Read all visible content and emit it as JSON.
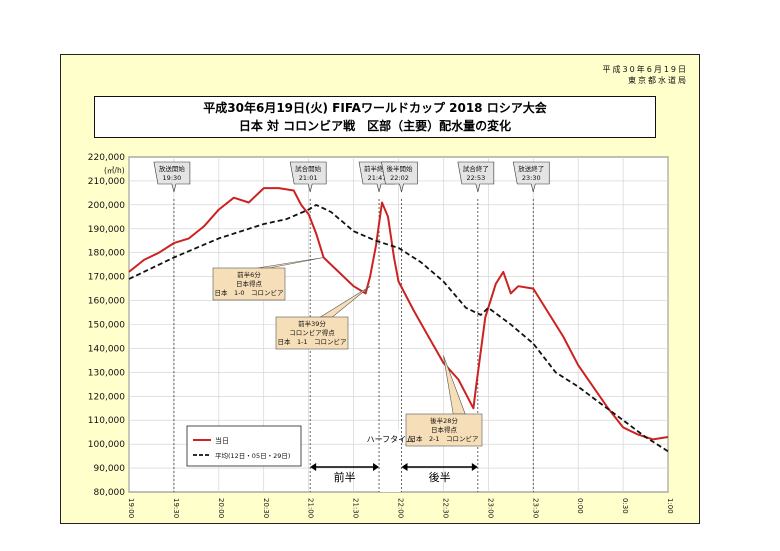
{
  "header": {
    "date": "平成30年6月19日",
    "agency": "東京都水道局"
  },
  "chart_data": {
    "type": "line",
    "title_line1": "平成30年6月19日(火) FIFAワールドカップ 2018 ロシア大会",
    "title_line2": "日本 対 コロンビア戦　区部（主要）配水量の変化",
    "ylabel": "(㎥/h)",
    "ylim": [
      80000,
      220000
    ],
    "yticks": [
      "80,000",
      "90,000",
      "100,000",
      "110,000",
      "120,000",
      "130,000",
      "140,000",
      "150,000",
      "160,000",
      "170,000",
      "180,000",
      "190,000",
      "200,000",
      "210,000",
      "220,000"
    ],
    "xlim": [
      "19:00",
      "25:00"
    ],
    "xticks": [
      "19:00",
      "19:30",
      "20:00",
      "20:30",
      "21:00",
      "21:30",
      "22:00",
      "22:30",
      "23:00",
      "23:30",
      "0:00",
      "0:30",
      "1:00"
    ],
    "series": [
      {
        "name": "当日",
        "color": "#cc2222",
        "style": "solid",
        "points": [
          [
            "19:00",
            172000
          ],
          [
            "19:10",
            177000
          ],
          [
            "19:20",
            180000
          ],
          [
            "19:30",
            184000
          ],
          [
            "19:40",
            186000
          ],
          [
            "19:50",
            191000
          ],
          [
            "20:00",
            198000
          ],
          [
            "20:10",
            203000
          ],
          [
            "20:20",
            201000
          ],
          [
            "20:30",
            207000
          ],
          [
            "20:40",
            207000
          ],
          [
            "20:50",
            206000
          ],
          [
            "20:55",
            200000
          ],
          [
            "21:00",
            196000
          ],
          [
            "21:05",
            188000
          ],
          [
            "21:10",
            178000
          ],
          [
            "21:20",
            172000
          ],
          [
            "21:30",
            166000
          ],
          [
            "21:38",
            163000
          ],
          [
            "21:41",
            170000
          ],
          [
            "21:45",
            183000
          ],
          [
            "21:49",
            201000
          ],
          [
            "21:53",
            195000
          ],
          [
            "21:57",
            178000
          ],
          [
            "22:00",
            168000
          ],
          [
            "22:10",
            156000
          ],
          [
            "22:20",
            145000
          ],
          [
            "22:30",
            134000
          ],
          [
            "22:40",
            127000
          ],
          [
            "22:50",
            115000
          ],
          [
            "22:52",
            125000
          ],
          [
            "22:58",
            153000
          ],
          [
            "23:05",
            167000
          ],
          [
            "23:10",
            172000
          ],
          [
            "23:15",
            163000
          ],
          [
            "23:20",
            166000
          ],
          [
            "23:30",
            165000
          ],
          [
            "23:40",
            155000
          ],
          [
            "23:50",
            145000
          ],
          [
            "0:00",
            133000
          ],
          [
            "0:10",
            124000
          ],
          [
            "0:20",
            115000
          ],
          [
            "0:30",
            107000
          ],
          [
            "0:40",
            104000
          ],
          [
            "0:50",
            102000
          ],
          [
            "1:00",
            103000
          ]
        ]
      },
      {
        "name": "平均(12日・05日・29日)",
        "color": "#111111",
        "style": "dashed",
        "points": [
          [
            "19:00",
            169000
          ],
          [
            "19:30",
            178000
          ],
          [
            "20:00",
            186000
          ],
          [
            "20:15",
            189000
          ],
          [
            "20:30",
            192000
          ],
          [
            "20:45",
            194000
          ],
          [
            "21:00",
            198000
          ],
          [
            "21:05",
            200000
          ],
          [
            "21:15",
            197000
          ],
          [
            "21:30",
            189000
          ],
          [
            "21:45",
            185000
          ],
          [
            "22:00",
            182000
          ],
          [
            "22:15",
            176000
          ],
          [
            "22:30",
            168000
          ],
          [
            "22:45",
            157000
          ],
          [
            "22:55",
            154000
          ],
          [
            "23:00",
            157000
          ],
          [
            "23:15",
            150000
          ],
          [
            "23:30",
            142000
          ],
          [
            "23:45",
            130000
          ],
          [
            "0:00",
            124000
          ],
          [
            "0:15",
            117000
          ],
          [
            "0:30",
            110000
          ],
          [
            "0:45",
            103000
          ],
          [
            "1:00",
            97000
          ]
        ]
      }
    ],
    "events": [
      {
        "label": "放送開始",
        "time": "19:30"
      },
      {
        "label": "試合開始",
        "time": "21:01"
      },
      {
        "label": "前半終了",
        "time": "21:47"
      },
      {
        "label": "後半開始",
        "time": "22:02"
      },
      {
        "label": "試合終了",
        "time": "22:53"
      },
      {
        "label": "放送終了",
        "time": "23:30"
      }
    ],
    "goals": [
      {
        "line1": "前半6分",
        "line2": "日本得点",
        "line3": "日本　1-0　コロンビア",
        "time": "21:10",
        "value": 178000
      },
      {
        "line1": "前半39分",
        "line2": "コロンビア得点",
        "line3": "日本　1-1　コロンビア",
        "time": "21:41",
        "value": 166000
      },
      {
        "line1": "後半28分",
        "line2": "日本得点",
        "line3": "日本　2-1　コロンビア",
        "time": "22:30",
        "value": 137000
      }
    ],
    "periods": {
      "first_half": "前半",
      "half_time": "ハーフタイム",
      "second_half": "後半"
    }
  }
}
